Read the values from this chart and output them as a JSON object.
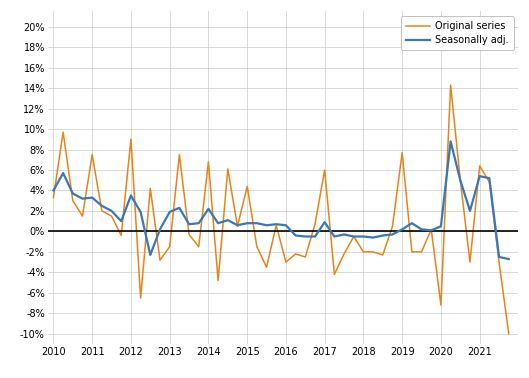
{
  "original_series": [
    3.3,
    9.7,
    3.0,
    1.5,
    7.5,
    2.0,
    1.5,
    -0.4,
    9.0,
    -6.5,
    4.2,
    -2.8,
    -1.5,
    7.5,
    -0.3,
    -1.5,
    6.8,
    -4.8,
    6.1,
    0.5,
    4.4,
    -1.5,
    -3.5,
    0.6,
    -3.0,
    -2.2,
    -2.5,
    0.7,
    6.0,
    -4.2,
    -2.2,
    -0.5,
    -2.0,
    -2.0,
    -2.3,
    0.5,
    7.7,
    -2.0,
    -2.0,
    0.2,
    -7.2,
    14.3,
    5.0,
    -3.0,
    6.4,
    4.8,
    -3.0,
    -10.0
  ],
  "seasonally_adj": [
    4.0,
    5.7,
    3.7,
    3.2,
    3.3,
    2.5,
    2.0,
    1.0,
    3.5,
    1.9,
    -2.3,
    0.2,
    1.9,
    2.3,
    0.7,
    0.8,
    2.2,
    0.8,
    1.1,
    0.6,
    0.8,
    0.8,
    0.6,
    0.7,
    0.6,
    -0.4,
    -0.5,
    -0.5,
    0.9,
    -0.5,
    -0.3,
    -0.5,
    -0.5,
    -0.6,
    -0.4,
    -0.3,
    0.2,
    0.8,
    0.2,
    0.1,
    0.5,
    8.8,
    5.0,
    2.0,
    5.4,
    5.2,
    -2.5,
    -2.7
  ],
  "orange_color": "#E8831A",
  "blue_color": "#3A78B5",
  "legend_labels": [
    "Original series",
    "Seasonally adj."
  ],
  "yticks": [
    -10,
    -8,
    -6,
    -4,
    -2,
    0,
    2,
    4,
    6,
    8,
    10,
    12,
    14,
    16,
    18,
    20
  ],
  "ylim": [
    -11.0,
    21.5
  ],
  "year_start": 2010,
  "quarters_per_year": 4,
  "grid_color": "#CCCCCC",
  "background_color": "#FFFFFF",
  "zero_line_color": "#000000",
  "xtick_years": [
    2010,
    2011,
    2012,
    2013,
    2014,
    2015,
    2016,
    2017,
    2018,
    2019,
    2020,
    2021
  ]
}
